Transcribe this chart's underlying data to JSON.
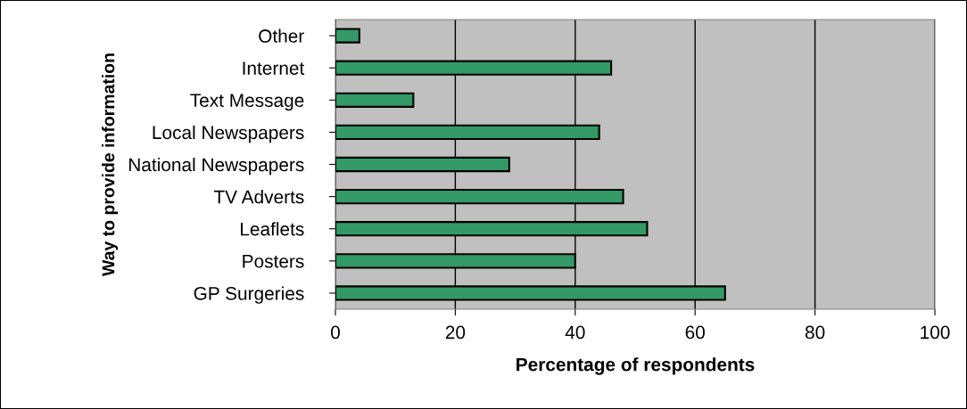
{
  "chart_data": {
    "type": "bar",
    "orientation": "horizontal",
    "xlabel": "Percentage of respondents",
    "ylabel": "Way to provide information",
    "categories": [
      "Other",
      "Internet",
      "Text Message",
      "Local Newspapers",
      "National Newspapers",
      "TV Adverts",
      "Leaflets",
      "Posters",
      "GP Surgeries"
    ],
    "values": [
      4,
      46,
      13,
      44,
      29,
      48,
      52,
      40,
      65
    ],
    "color": "#339966",
    "xlim": [
      0,
      100
    ],
    "xticks": [
      0,
      20,
      40,
      60,
      80,
      100
    ],
    "grid": "x",
    "legend": false
  }
}
